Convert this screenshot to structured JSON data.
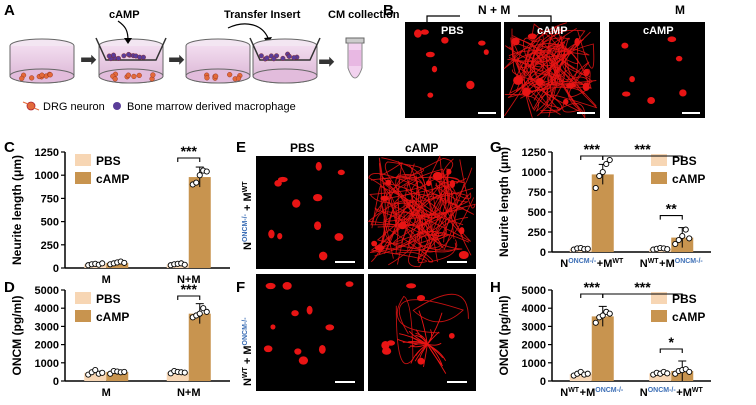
{
  "panels": {
    "A": "A",
    "B": "B",
    "C": "C",
    "D": "D",
    "E": "E",
    "F": "F",
    "G": "G",
    "H": "H"
  },
  "colors": {
    "pbs": "#f7d6b4",
    "camp": "#c8944f",
    "axis": "#000000",
    "cell_red": "#e81414",
    "neuron": "#e36a3a",
    "macrophage": "#5a3d99",
    "dish": "#e8c8e4",
    "scale_bar": "#ffffff"
  },
  "panelA": {
    "steps": [
      "cAMP",
      "Transfer Insert",
      "CM collection"
    ],
    "legend": {
      "neuron": "DRG neuron",
      "macrophage": "Bone marrow derived macrophage"
    },
    "icons": [
      "culture-dish-icon",
      "transwell-insert-icon",
      "arrow-right-icon",
      "tube-icon"
    ]
  },
  "panelB": {
    "group": "N + M",
    "group2": "M",
    "images": [
      "PBS",
      "cAMP",
      "cAMP"
    ]
  },
  "panelE": {
    "cols": [
      "PBS",
      "cAMP"
    ],
    "rowE": "N^ONCM-/- + M^WT",
    "rowF": "N^WT + M^ONCM-/-"
  },
  "chart_data": [
    {
      "id": "C",
      "type": "bar",
      "ylabel": "Neurite length (μm)",
      "ylim": [
        0,
        1250
      ],
      "yticks": [
        "0",
        "250",
        "500",
        "750",
        "1000",
        "1250"
      ],
      "categories": [
        "M",
        "N+M"
      ],
      "legend": [
        "PBS",
        "cAMP"
      ],
      "series": [
        {
          "name": "PBS",
          "values": [
            40,
            40
          ],
          "points": [
            [
              30,
              40,
              45,
              35,
              50
            ],
            [
              30,
              40,
              45,
              50,
              35
            ]
          ]
        },
        {
          "name": "cAMP",
          "values": [
            55,
            980
          ],
          "points": [
            [
              40,
              50,
              60,
              70,
              55
            ],
            [
              900,
              920,
              1000,
              1050,
              1040
            ]
          ]
        }
      ],
      "sig": [
        {
          "pair": [
            1,
            1
          ],
          "text": "***"
        }
      ]
    },
    {
      "id": "D",
      "type": "bar",
      "ylabel": "ONCM (pg/ml)",
      "ylim": [
        0,
        5000
      ],
      "yticks": [
        "0",
        "1000",
        "2000",
        "3000",
        "4000",
        "5000"
      ],
      "categories": [
        "M",
        "N+M"
      ],
      "legend": [
        "PBS",
        "cAMP"
      ],
      "series": [
        {
          "name": "PBS",
          "values": [
            450,
            480
          ],
          "points": [
            [
              350,
              480,
              600,
              400,
              450
            ],
            [
              420,
              550,
              500,
              480,
              460
            ]
          ]
        },
        {
          "name": "cAMP",
          "values": [
            500,
            3700
          ],
          "points": [
            [
              400,
              550,
              520,
              480,
              500
            ],
            [
              3500,
              3600,
              3700,
              4000,
              3800
            ]
          ]
        }
      ],
      "sig": [
        {
          "pair": [
            1,
            1
          ],
          "text": "***"
        }
      ]
    },
    {
      "id": "G",
      "type": "bar",
      "ylabel": "Neurite length (μm)",
      "ylim": [
        0,
        1250
      ],
      "yticks": [
        "0",
        "250",
        "500",
        "750",
        "1000",
        "1250"
      ],
      "categories": [
        "N^ONCM-/- + M^WT",
        "N^WT + M^ONCM-/-"
      ],
      "legend": [
        "PBS",
        "cAMP"
      ],
      "series": [
        {
          "name": "PBS",
          "values": [
            40,
            40
          ],
          "points": [
            [
              30,
              45,
              50,
              35,
              40
            ],
            [
              30,
              40,
              50,
              45,
              35
            ]
          ]
        },
        {
          "name": "cAMP",
          "values": [
            970,
            180
          ],
          "points": [
            [
              800,
              950,
              1000,
              1100,
              1150
            ],
            [
              100,
              150,
              200,
              280,
              170
            ]
          ]
        }
      ],
      "sig": [
        {
          "text": "***",
          "kind": "left"
        },
        {
          "text": "***",
          "kind": "long"
        },
        {
          "text": "**",
          "kind": "right"
        }
      ]
    },
    {
      "id": "H",
      "type": "bar",
      "ylabel": "ONCM (pg/ml)",
      "ylim": [
        0,
        5000
      ],
      "yticks": [
        "0",
        "1000",
        "2000",
        "3000",
        "4000",
        "5000"
      ],
      "categories": [
        "N^WT + M^ONCM-/-",
        "N^ONCM-/- + M^WT"
      ],
      "legend": [
        "PBS",
        "cAMP"
      ],
      "series": [
        {
          "name": "PBS",
          "values": [
            380,
            420
          ],
          "points": [
            [
              300,
              400,
              500,
              350,
              400
            ],
            [
              350,
              450,
              400,
              500,
              420
            ]
          ]
        },
        {
          "name": "cAMP",
          "values": [
            3550,
            550
          ],
          "points": [
            [
              3200,
              3500,
              3600,
              3800,
              3700
            ],
            [
              400,
              550,
              600,
              650,
              500
            ]
          ]
        }
      ],
      "sig": [
        {
          "text": "***",
          "kind": "left"
        },
        {
          "text": "***",
          "kind": "long"
        },
        {
          "text": "*",
          "kind": "right"
        }
      ]
    }
  ]
}
